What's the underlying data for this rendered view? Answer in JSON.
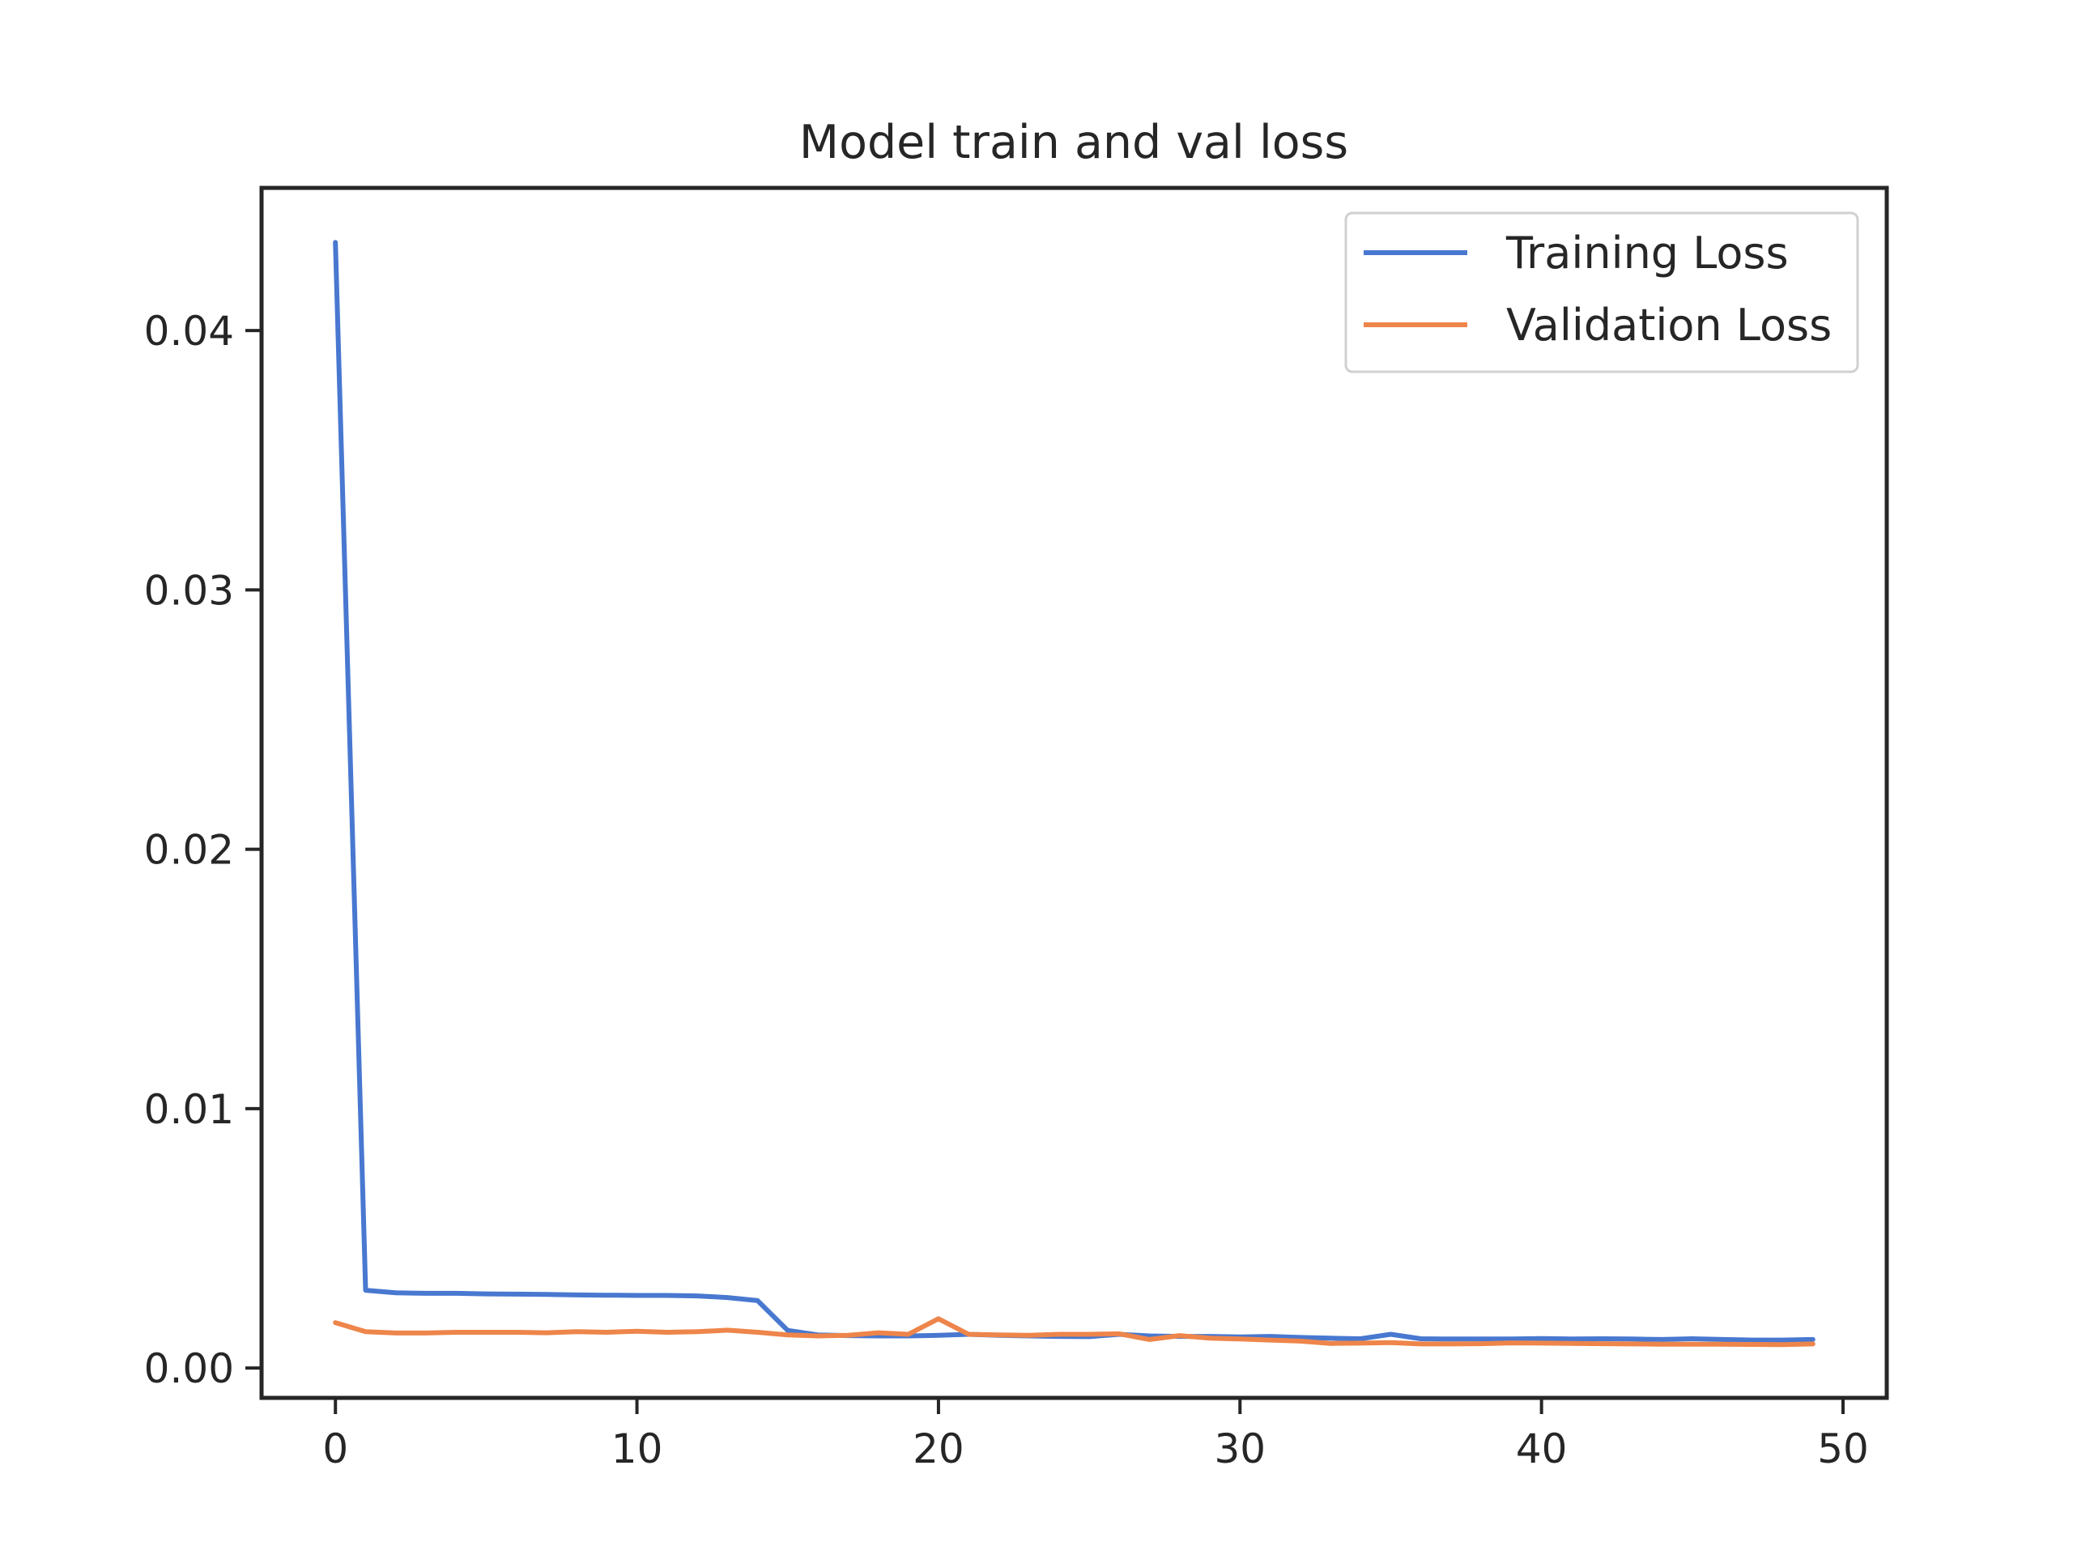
{
  "chart_data": {
    "type": "line",
    "title": "Model train and val loss",
    "xlabel": "",
    "ylabel": "",
    "xlim": [
      -2.45,
      51.45
    ],
    "ylim": [
      -0.00115,
      0.0455
    ],
    "xticks": [
      0,
      10,
      20,
      30,
      40,
      50
    ],
    "xtick_labels": [
      "0",
      "10",
      "20",
      "30",
      "40",
      "50"
    ],
    "yticks": [
      0.0,
      0.01,
      0.02,
      0.03,
      0.04
    ],
    "ytick_labels": [
      "0.00",
      "0.01",
      "0.02",
      "0.03",
      "0.04"
    ],
    "grid": false,
    "legend_position": "top-right",
    "x": [
      0,
      1,
      2,
      3,
      4,
      5,
      6,
      7,
      8,
      9,
      10,
      11,
      12,
      13,
      14,
      15,
      16,
      17,
      18,
      19,
      20,
      21,
      22,
      23,
      24,
      25,
      26,
      27,
      28,
      29,
      30,
      31,
      32,
      33,
      34,
      35,
      36,
      37,
      38,
      39,
      40,
      41,
      42,
      43,
      44,
      45,
      46,
      47,
      48,
      49
    ],
    "series": [
      {
        "name": "Training Loss",
        "color": "#4878d0",
        "values": [
          0.0434,
          0.003,
          0.0029,
          0.00288,
          0.00288,
          0.00286,
          0.00285,
          0.00284,
          0.00282,
          0.00281,
          0.0028,
          0.0028,
          0.00278,
          0.00272,
          0.0026,
          0.00145,
          0.00128,
          0.00125,
          0.00124,
          0.00124,
          0.00126,
          0.0013,
          0.00126,
          0.00124,
          0.00122,
          0.00121,
          0.0013,
          0.00124,
          0.00122,
          0.00122,
          0.0012,
          0.00122,
          0.00118,
          0.00115,
          0.00113,
          0.0013,
          0.00113,
          0.00112,
          0.00112,
          0.00112,
          0.00114,
          0.00112,
          0.00113,
          0.00112,
          0.0011,
          0.00113,
          0.0011,
          0.00108,
          0.00108,
          0.0011
        ]
      },
      {
        "name": "Validation Loss",
        "color": "#ee854a",
        "values": [
          0.00175,
          0.0014,
          0.00135,
          0.00135,
          0.00138,
          0.00138,
          0.00138,
          0.00136,
          0.0014,
          0.00138,
          0.00142,
          0.00138,
          0.0014,
          0.00146,
          0.00138,
          0.00128,
          0.00124,
          0.00126,
          0.00136,
          0.0013,
          0.0019,
          0.0013,
          0.00128,
          0.00126,
          0.0013,
          0.0013,
          0.00132,
          0.0011,
          0.00125,
          0.00115,
          0.00112,
          0.00108,
          0.00104,
          0.00095,
          0.00096,
          0.00098,
          0.00093,
          0.00093,
          0.00094,
          0.00097,
          0.00096,
          0.00095,
          0.00094,
          0.00093,
          0.00092,
          0.00092,
          0.00092,
          0.00091,
          0.0009,
          0.00093
        ]
      }
    ]
  }
}
